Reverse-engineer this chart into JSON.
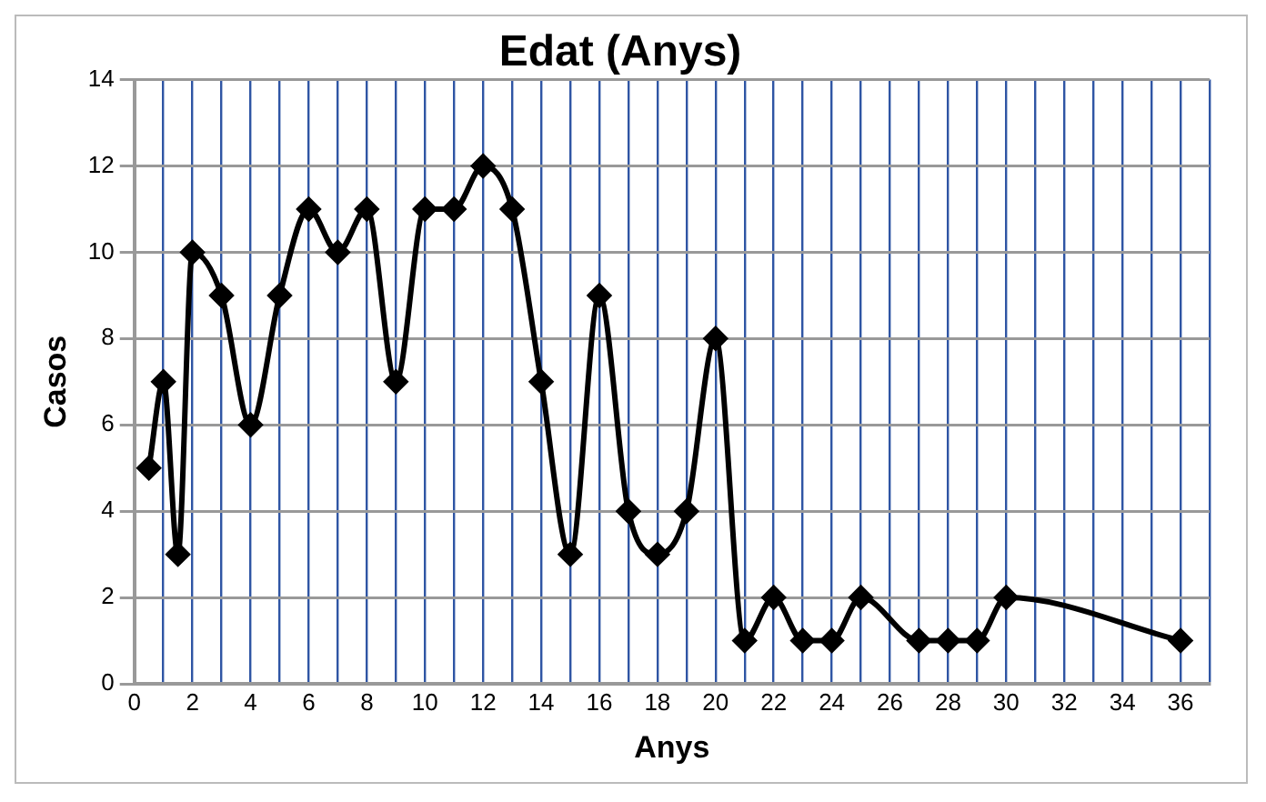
{
  "chart_data": {
    "type": "line",
    "title": "Edat (Anys)",
    "xlabel": "Anys",
    "ylabel": "Casos",
    "x": [
      0.5,
      1,
      1.5,
      2,
      3,
      4,
      5,
      6,
      7,
      8,
      9,
      10,
      11,
      12,
      13,
      14,
      15,
      16,
      17,
      18,
      19,
      20,
      21,
      22,
      23,
      24,
      25,
      27,
      28,
      29,
      30,
      36
    ],
    "series": [
      {
        "color": "#000000",
        "values": [
          5,
          7,
          3,
          10,
          9,
          6,
          9,
          11,
          10,
          11,
          7,
          11,
          11,
          12,
          11,
          7,
          3,
          9,
          4,
          3,
          4,
          8,
          1,
          2,
          1,
          1,
          2,
          1,
          1,
          1,
          2,
          1
        ]
      }
    ],
    "xlim": [
      0,
      37
    ],
    "xticks": [
      0,
      {
        "value": 1,
        "label": null
      },
      2,
      {
        "value": 3,
        "label": null
      },
      4,
      {
        "value": 5,
        "label": null
      },
      6,
      {
        "value": 7,
        "label": null
      },
      8,
      {
        "value": 9,
        "label": null
      },
      10,
      {
        "value": 11,
        "label": null
      },
      12,
      {
        "value": 13,
        "label": null
      },
      14,
      {
        "value": 15,
        "label": null
      },
      16,
      {
        "value": 17,
        "label": null
      },
      18,
      {
        "value": 19,
        "label": null
      },
      20,
      {
        "value": 21,
        "label": null
      },
      22,
      {
        "value": 23,
        "label": null
      },
      24,
      {
        "value": 25,
        "label": null
      },
      26,
      {
        "value": 27,
        "label": null
      },
      28,
      {
        "value": 29,
        "label": null
      },
      30,
      {
        "value": 31,
        "label": null
      },
      32,
      {
        "value": 33,
        "label": null
      },
      34,
      {
        "value": 35,
        "label": null
      },
      36,
      {
        "value": 37,
        "label": null
      }
    ],
    "ylim": [
      0,
      14
    ],
    "yticks": [
      0,
      2,
      4,
      6,
      8,
      10,
      12,
      14
    ],
    "grid": true,
    "legend": false,
    "marker": "diamond",
    "line_style": "solid"
  }
}
